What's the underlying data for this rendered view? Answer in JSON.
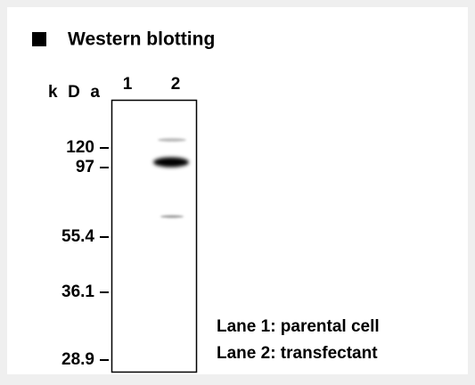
{
  "header": {
    "title": "Western blotting"
  },
  "blot": {
    "unit_label": "kDa",
    "lanes": [
      "1",
      "2"
    ],
    "markers": [
      "120",
      "97",
      "55.4",
      "36.1",
      "28.9"
    ]
  },
  "legend": [
    "Lane 1: parental cell",
    "Lane 2: transfectant"
  ]
}
